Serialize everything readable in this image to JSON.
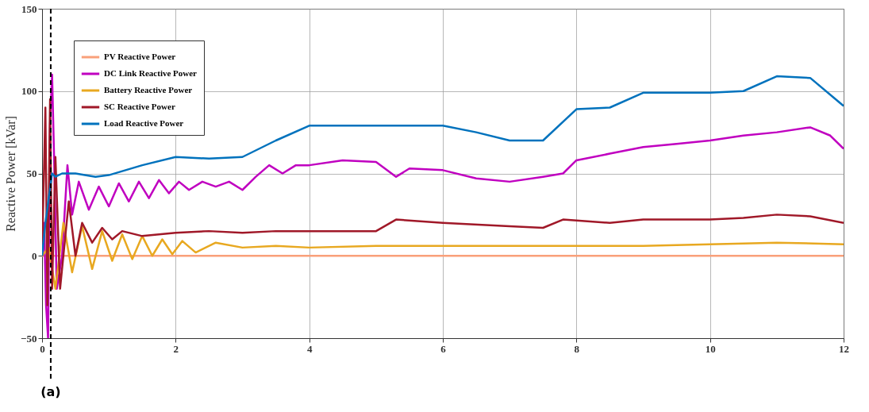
{
  "chart_data": {
    "type": "line",
    "ylabel": "Reactive Power [kVar]",
    "xlim": [
      0,
      12
    ],
    "xticks": [
      0,
      2,
      4,
      6,
      8,
      10,
      12
    ],
    "ylim": [
      -50,
      150
    ],
    "yticks": [
      -50,
      0,
      50,
      100,
      150
    ],
    "grid": true,
    "legend": "top left",
    "ref_lines": [
      {
        "axis": "x",
        "value": 0.13,
        "label": "(a)",
        "color": "#000000",
        "line_style": "dashed"
      }
    ],
    "series": [
      {
        "name": "PV Reactive Power",
        "color": "#f9a07a",
        "x": [
          0,
          0.5,
          12
        ],
        "values": [
          0,
          0,
          0
        ]
      },
      {
        "name": "DC Link Reactive Power",
        "color": "#c000c0",
        "x": [
          0,
          0.03,
          0.06,
          0.09,
          0.12,
          0.15,
          0.18,
          0.22,
          0.3,
          0.38,
          0.45,
          0.55,
          0.7,
          0.85,
          1.0,
          1.15,
          1.3,
          1.45,
          1.6,
          1.75,
          1.9,
          2.05,
          2.2,
          2.4,
          2.6,
          2.8,
          3.0,
          3.2,
          3.4,
          3.6,
          3.8,
          4.0,
          4.5,
          5.0,
          5.3,
          5.5,
          6.0,
          6.5,
          7.0,
          7.5,
          7.8,
          8.0,
          8.5,
          9.0,
          9.5,
          10.0,
          10.5,
          11.0,
          11.5,
          11.8,
          12.0
        ],
        "values": [
          0,
          20,
          -30,
          -50,
          80,
          110,
          60,
          -20,
          0,
          55,
          25,
          45,
          28,
          42,
          30,
          44,
          33,
          45,
          35,
          46,
          38,
          45,
          40,
          45,
          42,
          45,
          40,
          48,
          55,
          50,
          55,
          55,
          58,
          57,
          48,
          53,
          52,
          47,
          45,
          48,
          50,
          58,
          62,
          66,
          68,
          70,
          73,
          75,
          78,
          73,
          65
        ]
      },
      {
        "name": "Battery Reactive Power",
        "color": "#e8a820",
        "x": [
          0,
          0.1,
          0.2,
          0.32,
          0.45,
          0.6,
          0.75,
          0.9,
          1.05,
          1.2,
          1.35,
          1.5,
          1.65,
          1.8,
          1.95,
          2.1,
          2.3,
          2.6,
          3.0,
          3.5,
          4.0,
          5.0,
          6.0,
          7.0,
          8.0,
          9.0,
          10.0,
          11.0,
          12.0
        ],
        "values": [
          0,
          5,
          -20,
          20,
          -10,
          18,
          -8,
          15,
          -3,
          13,
          -2,
          12,
          0,
          10,
          1,
          9,
          2,
          8,
          5,
          6,
          5,
          6,
          6,
          6,
          6,
          6,
          7,
          8,
          7
        ]
      },
      {
        "name": "SC Reactive Power",
        "color": "#a01828",
        "x": [
          0,
          0.05,
          0.08,
          0.12,
          0.15,
          0.2,
          0.27,
          0.4,
          0.5,
          0.6,
          0.75,
          0.9,
          1.05,
          1.2,
          1.5,
          2.0,
          2.5,
          3.0,
          3.5,
          4.0,
          5.0,
          5.3,
          6.0,
          7.0,
          7.5,
          7.8,
          8.5,
          9.0,
          10.0,
          10.5,
          11.0,
          11.5,
          12.0
        ],
        "values": [
          0,
          90,
          -30,
          95,
          -20,
          60,
          -20,
          33,
          0,
          20,
          8,
          17,
          10,
          15,
          12,
          14,
          15,
          14,
          15,
          15,
          15,
          22,
          20,
          18,
          17,
          22,
          20,
          22,
          22,
          23,
          25,
          24,
          20
        ]
      },
      {
        "name": "Load Reactive Power",
        "color": "#0072bd",
        "x": [
          0,
          0.05,
          0.1,
          0.15,
          0.2,
          0.3,
          0.5,
          0.8,
          1.0,
          1.5,
          2.0,
          2.5,
          3.0,
          3.5,
          4.0,
          5.0,
          6.0,
          6.5,
          7.0,
          7.5,
          8.0,
          8.5,
          9.0,
          10.0,
          10.5,
          11.0,
          11.5,
          12.0
        ],
        "values": [
          0,
          20,
          35,
          50,
          48,
          50,
          50,
          48,
          49,
          55,
          60,
          59,
          60,
          70,
          79,
          79,
          79,
          75,
          70,
          70,
          89,
          90,
          99,
          99,
          100,
          109,
          108,
          91
        ]
      }
    ]
  }
}
